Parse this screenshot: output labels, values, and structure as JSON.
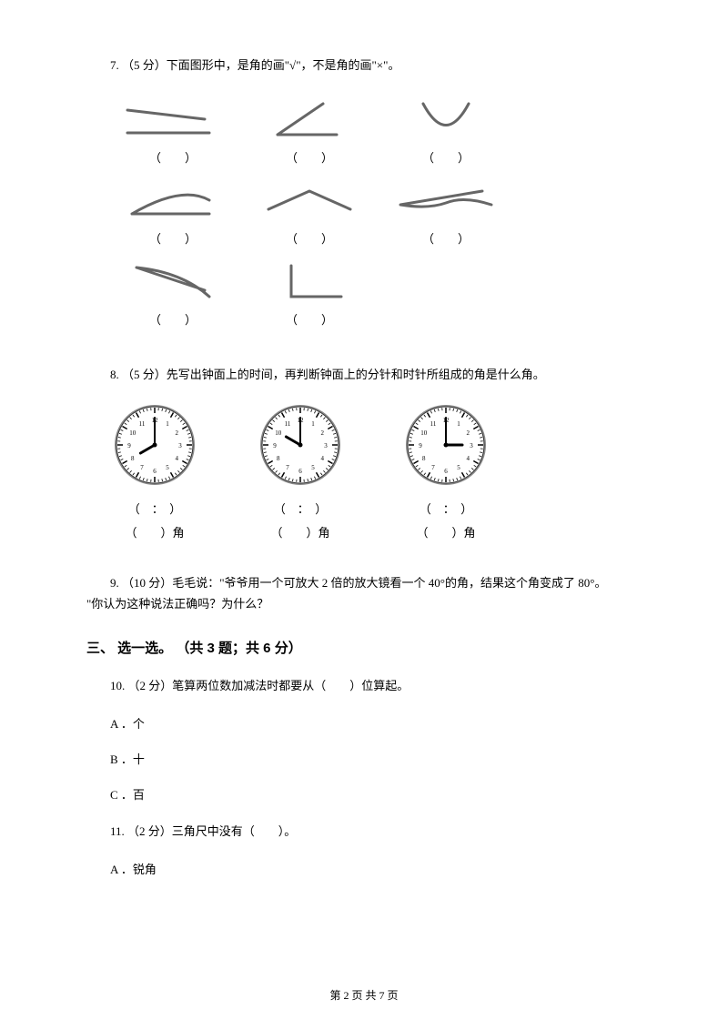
{
  "q7": {
    "text": "7. （5 分）下面图形中，是角的画\"√\"，不是角的画\"×\"。",
    "blank": "（　　）"
  },
  "q8": {
    "text": "8. （5 分）先写出钟面上的时间，再判断钟面上的分针和时针所组成的角是什么角。",
    "time_blank": "（　：　）",
    "angle_blank": "（　　）角",
    "clocks": [
      {
        "hour": 8,
        "minute": 0
      },
      {
        "hour": 10,
        "minute": 0
      },
      {
        "hour": 3,
        "minute": 0
      }
    ]
  },
  "q9": {
    "line1": "9. （10 分）毛毛说：\"爷爷用一个可放大 2 倍的放大镜看一个 40°的角，结果这个角变成了 80°。",
    "line2": "\"你认为这种说法正确吗？为什么？"
  },
  "section3": "三、 选一选。 （共 3 题；共 6 分）",
  "q10": {
    "text": "10. （2 分）笔算两位数加减法时都要从（　　）位算起。",
    "optA": "A ．个",
    "optB": "B ．十",
    "optC": "C ．百"
  },
  "q11": {
    "text": "11. （2 分）三角尺中没有（　　）。",
    "optA": "A ．锐角"
  },
  "footer": "第 2 页 共 7 页",
  "shapes": {
    "stroke": "#666666",
    "width": 3
  },
  "clock_style": {
    "face": "#ffffff",
    "border": "#333333",
    "tick": "#000000",
    "hand": "#000000"
  }
}
